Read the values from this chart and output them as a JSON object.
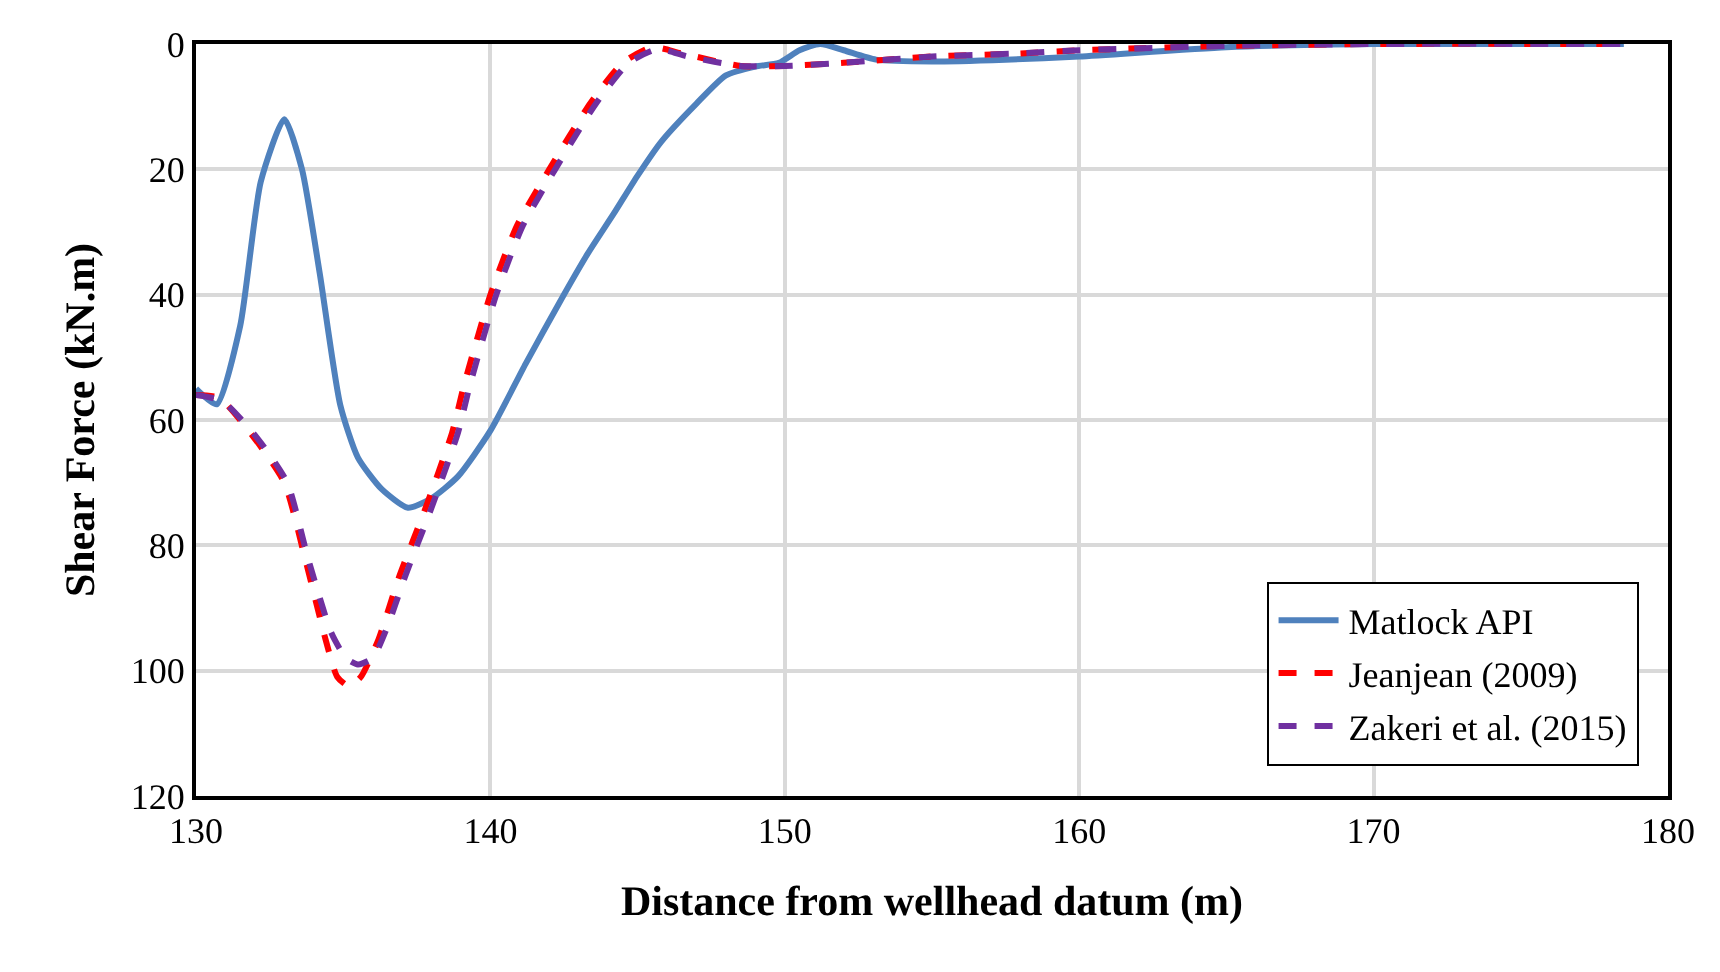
{
  "chart_data": {
    "type": "line",
    "xlabel": "Distance from wellhead datum (m)",
    "ylabel": "Shear Force (kN.m)",
    "xlim": [
      130,
      180
    ],
    "xticks": [
      130,
      140,
      150,
      160,
      170,
      180
    ],
    "ylim": [
      120,
      0
    ],
    "yticks": [
      0,
      20,
      40,
      60,
      80,
      100,
      120
    ],
    "grid": true,
    "legend": "bottom right",
    "marker": "none",
    "series": [
      {
        "name": "Matlock API",
        "color": "#4f81bd",
        "line_style": "solid",
        "x": [
          130,
          130.7,
          131.5,
          132.2,
          133,
          133.6,
          134.2,
          134.9,
          135.5,
          136.3,
          137.2,
          138,
          138.9,
          140,
          141.2,
          142.4,
          143.3,
          144.2,
          145,
          145.8,
          147,
          148,
          149,
          149.8,
          150.5,
          151.2,
          152,
          153.1,
          155,
          157.5,
          160,
          165,
          170,
          175,
          178.5
        ],
        "values": [
          55,
          57.5,
          45,
          22,
          12,
          20,
          36.5,
          57.6,
          66,
          71,
          74,
          72.5,
          69,
          61.7,
          51,
          40.8,
          33.5,
          27,
          21,
          15.6,
          9.5,
          5,
          3.6,
          3,
          1,
          0,
          1,
          2.5,
          2.8,
          2.5,
          2,
          0.5,
          0,
          0,
          0
        ]
      },
      {
        "name": "Jeanjean (2009)",
        "color": "#ff0000",
        "line_style": "dashed",
        "x": [
          130,
          130.8,
          132,
          133,
          133.7,
          134.4,
          134.8,
          135.2,
          135.6,
          136.2,
          136.9,
          137.8,
          138.7,
          139.1,
          140,
          140.9,
          142,
          143.4,
          144.5,
          145.5,
          146.5,
          148.5,
          150,
          152,
          155,
          158,
          160,
          165,
          170,
          178.5
        ],
        "values": [
          56,
          56.5,
          63,
          70,
          82,
          95,
          101,
          102.5,
          101,
          95,
          85,
          74,
          62,
          54.5,
          40,
          29,
          20,
          9.4,
          3,
          0.5,
          1.5,
          3.5,
          3.5,
          3,
          2,
          1.5,
          1,
          0.3,
          0,
          0
        ]
      },
      {
        "name": "Zakeri et al. (2015)",
        "color": "#7030a0",
        "line_style": "dashed",
        "x": [
          130,
          130.9,
          132.1,
          133.1,
          133.8,
          134.6,
          135.1,
          135.5,
          136,
          136.5,
          137.1,
          138,
          138.9,
          139.3,
          140.2,
          141.1,
          142.2,
          143.6,
          144.7,
          145.7,
          146.7,
          148.5,
          150,
          152,
          155,
          158,
          160,
          165,
          170,
          178.5
        ],
        "values": [
          56,
          57,
          63,
          70,
          82,
          94,
          98,
          99,
          98,
          93,
          85,
          74,
          62,
          54.5,
          40,
          29,
          20,
          9.4,
          3,
          0.8,
          2,
          3.5,
          3.5,
          3,
          2,
          1.5,
          1,
          0.3,
          0,
          0
        ]
      }
    ]
  }
}
